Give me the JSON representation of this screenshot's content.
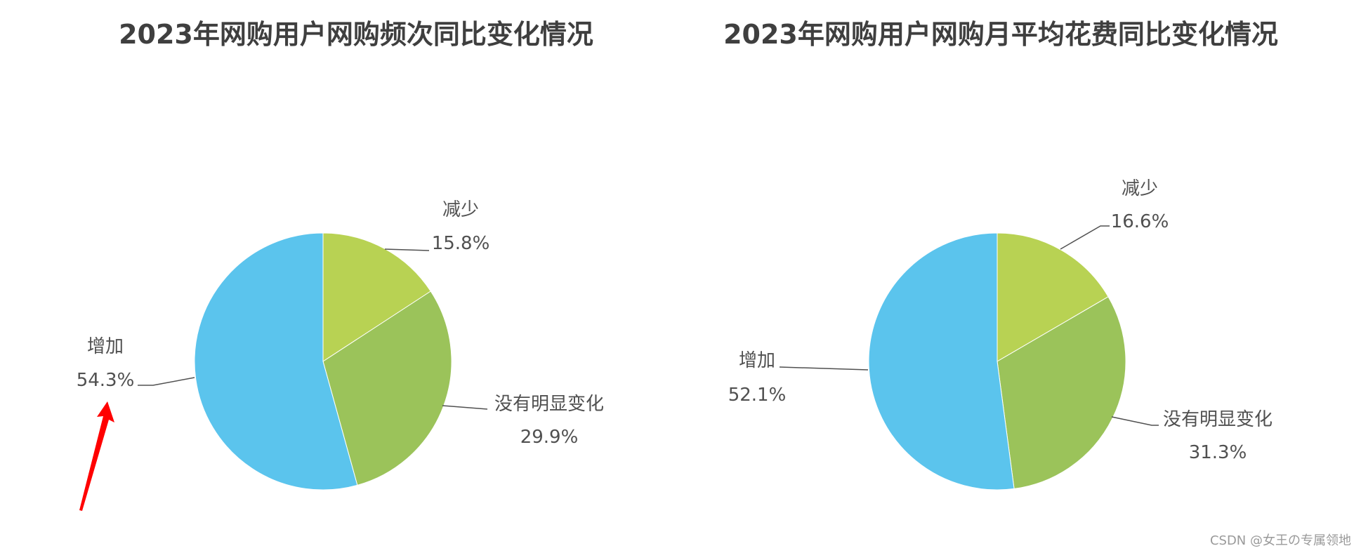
{
  "colors": {
    "increase": "#5bc4ed",
    "decrease": "#b8d253",
    "no_change": "#9bc35a",
    "arrow": "#ff0000"
  },
  "chart_data": [
    {
      "type": "pie",
      "title": "2023年网购用户网购频次同比变化情况",
      "slices": [
        {
          "label": "减少",
          "value": 15.8,
          "value_text": "15.8%"
        },
        {
          "label": "没有明显变化",
          "value": 29.9,
          "value_text": "29.9%"
        },
        {
          "label": "增加",
          "value": 54.3,
          "value_text": "54.3%"
        }
      ]
    },
    {
      "type": "pie",
      "title": "2023年网购用户网购月平均花费同比变化情况",
      "slices": [
        {
          "label": "减少",
          "value": 16.6,
          "value_text": "16.6%"
        },
        {
          "label": "没有明显变化",
          "value": 31.3,
          "value_text": "31.3%"
        },
        {
          "label": "增加",
          "value": 52.1,
          "value_text": "52.1%"
        }
      ]
    }
  ],
  "watermark": "CSDN @女王の专属领地"
}
